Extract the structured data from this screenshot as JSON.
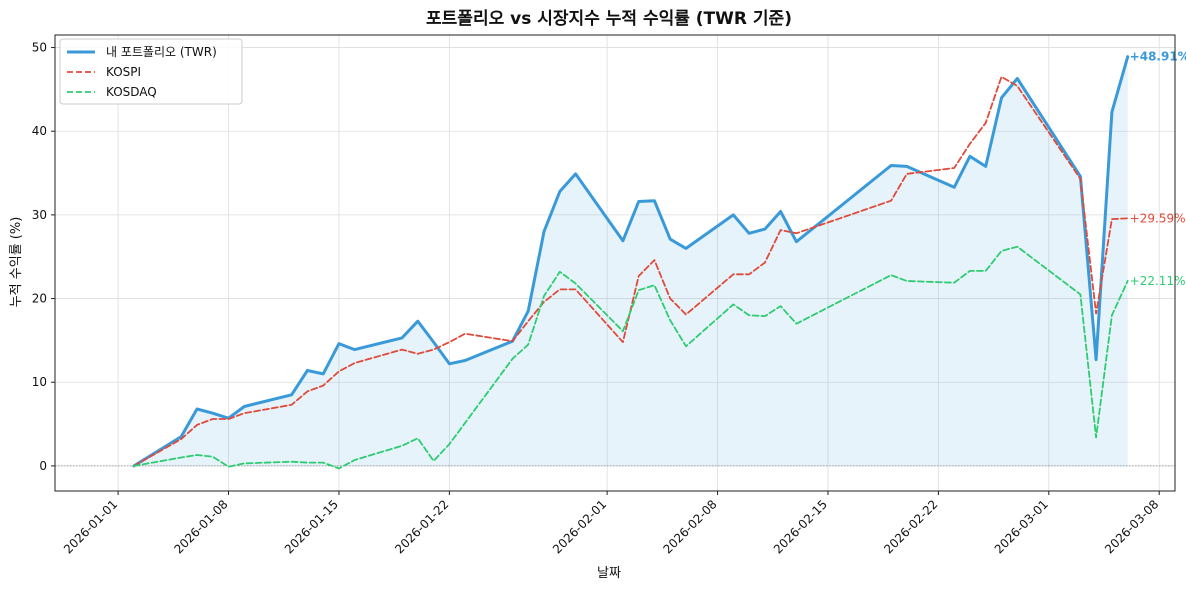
{
  "chart_data": {
    "type": "line",
    "title": "포트폴리오 vs 시장지수 누적 수익률 (TWR 기준)",
    "xlabel": "날짜",
    "ylabel": "누적 수익률 (%)",
    "xlim": [
      "2025-12-28",
      "2026-03-09"
    ],
    "ylim": [
      -3,
      51.5
    ],
    "x_ticks": [
      "2026-01-01",
      "2026-01-08",
      "2026-01-15",
      "2026-01-22",
      "2026-02-01",
      "2026-02-08",
      "2026-02-15",
      "2026-02-22",
      "2026-03-01",
      "2026-03-08"
    ],
    "y_ticks": [
      0,
      10,
      20,
      30,
      40,
      50
    ],
    "grid": true,
    "legend_position": "top-left",
    "baseline": 0,
    "series": [
      {
        "name": "내 포트폴리오 (TWR)",
        "color": "#3a9ad9",
        "style": "solid",
        "fill": true,
        "end_label": "+48.91%",
        "points": [
          [
            "2026-01-02",
            0.0
          ],
          [
            "2026-01-05",
            3.5
          ],
          [
            "2026-01-06",
            6.8
          ],
          [
            "2026-01-07",
            6.3
          ],
          [
            "2026-01-08",
            5.7
          ],
          [
            "2026-01-09",
            7.1
          ],
          [
            "2026-01-12",
            8.5
          ],
          [
            "2026-01-13",
            11.4
          ],
          [
            "2026-01-14",
            11.0
          ],
          [
            "2026-01-15",
            14.6
          ],
          [
            "2026-01-16",
            13.9
          ],
          [
            "2026-01-19",
            15.3
          ],
          [
            "2026-01-20",
            17.3
          ],
          [
            "2026-01-21",
            14.8
          ],
          [
            "2026-01-22",
            12.2
          ],
          [
            "2026-01-23",
            12.6
          ],
          [
            "2026-01-26",
            14.9
          ],
          [
            "2026-01-27",
            18.5
          ],
          [
            "2026-01-28",
            28.0
          ],
          [
            "2026-01-29",
            32.8
          ],
          [
            "2026-01-30",
            34.9
          ],
          [
            "2026-02-02",
            26.9
          ],
          [
            "2026-02-03",
            31.6
          ],
          [
            "2026-02-04",
            31.7
          ],
          [
            "2026-02-05",
            27.1
          ],
          [
            "2026-02-06",
            26.0
          ],
          [
            "2026-02-09",
            30.0
          ],
          [
            "2026-02-10",
            27.8
          ],
          [
            "2026-02-11",
            28.3
          ],
          [
            "2026-02-12",
            30.4
          ],
          [
            "2026-02-13",
            26.8
          ],
          [
            "2026-02-19",
            35.9
          ],
          [
            "2026-02-20",
            35.8
          ],
          [
            "2026-02-23",
            33.3
          ],
          [
            "2026-02-24",
            37.0
          ],
          [
            "2026-02-25",
            35.8
          ],
          [
            "2026-02-26",
            44.0
          ],
          [
            "2026-02-27",
            46.3
          ],
          [
            "2026-03-03",
            34.6
          ],
          [
            "2026-03-04",
            12.7
          ],
          [
            "2026-03-05",
            42.3
          ],
          [
            "2026-03-06",
            48.91
          ]
        ]
      },
      {
        "name": "KOSPI",
        "color": "#e04a3a",
        "style": "dashed",
        "fill": false,
        "end_label": "+29.59%",
        "points": [
          [
            "2026-01-02",
            0.0
          ],
          [
            "2026-01-05",
            3.2
          ],
          [
            "2026-01-06",
            4.9
          ],
          [
            "2026-01-07",
            5.6
          ],
          [
            "2026-01-08",
            5.6
          ],
          [
            "2026-01-09",
            6.3
          ],
          [
            "2026-01-12",
            7.3
          ],
          [
            "2026-01-13",
            8.9
          ],
          [
            "2026-01-14",
            9.6
          ],
          [
            "2026-01-15",
            11.3
          ],
          [
            "2026-01-16",
            12.3
          ],
          [
            "2026-01-19",
            13.9
          ],
          [
            "2026-01-20",
            13.4
          ],
          [
            "2026-01-21",
            13.9
          ],
          [
            "2026-01-22",
            14.8
          ],
          [
            "2026-01-23",
            15.8
          ],
          [
            "2026-01-26",
            14.9
          ],
          [
            "2026-01-27",
            17.3
          ],
          [
            "2026-01-28",
            19.6
          ],
          [
            "2026-01-29",
            21.1
          ],
          [
            "2026-01-30",
            21.1
          ],
          [
            "2026-02-02",
            14.8
          ],
          [
            "2026-02-03",
            22.7
          ],
          [
            "2026-02-04",
            24.6
          ],
          [
            "2026-02-05",
            20.0
          ],
          [
            "2026-02-06",
            18.1
          ],
          [
            "2026-02-09",
            22.9
          ],
          [
            "2026-02-10",
            22.9
          ],
          [
            "2026-02-11",
            24.3
          ],
          [
            "2026-02-12",
            28.2
          ],
          [
            "2026-02-13",
            27.8
          ],
          [
            "2026-02-19",
            31.7
          ],
          [
            "2026-02-20",
            34.9
          ],
          [
            "2026-02-23",
            35.6
          ],
          [
            "2026-02-24",
            38.5
          ],
          [
            "2026-02-25",
            41.0
          ],
          [
            "2026-02-26",
            46.5
          ],
          [
            "2026-02-27",
            45.4
          ],
          [
            "2026-03-03",
            34.3
          ],
          [
            "2026-03-04",
            18.2
          ],
          [
            "2026-03-05",
            29.5
          ],
          [
            "2026-03-06",
            29.59
          ]
        ]
      },
      {
        "name": "KOSDAQ",
        "color": "#2ecc71",
        "style": "dashed",
        "fill": false,
        "end_label": "+22.11%",
        "points": [
          [
            "2026-01-02",
            0.0
          ],
          [
            "2026-01-05",
            1.0
          ],
          [
            "2026-01-06",
            1.3
          ],
          [
            "2026-01-07",
            1.1
          ],
          [
            "2026-01-08",
            -0.1
          ],
          [
            "2026-01-09",
            0.3
          ],
          [
            "2026-01-12",
            0.5
          ],
          [
            "2026-01-13",
            0.4
          ],
          [
            "2026-01-14",
            0.4
          ],
          [
            "2026-01-15",
            -0.3
          ],
          [
            "2026-01-16",
            0.7
          ],
          [
            "2026-01-19",
            2.4
          ],
          [
            "2026-01-20",
            3.3
          ],
          [
            "2026-01-21",
            0.6
          ],
          [
            "2026-01-22",
            2.6
          ],
          [
            "2026-01-26",
            12.8
          ],
          [
            "2026-01-27",
            14.5
          ],
          [
            "2026-01-28",
            20.3
          ],
          [
            "2026-01-29",
            23.2
          ],
          [
            "2026-01-30",
            21.8
          ],
          [
            "2026-02-02",
            16.1
          ],
          [
            "2026-02-03",
            21.0
          ],
          [
            "2026-02-04",
            21.6
          ],
          [
            "2026-02-05",
            17.4
          ],
          [
            "2026-02-06",
            14.3
          ],
          [
            "2026-02-09",
            19.3
          ],
          [
            "2026-02-10",
            18.0
          ],
          [
            "2026-02-11",
            17.9
          ],
          [
            "2026-02-12",
            19.1
          ],
          [
            "2026-02-13",
            17.0
          ],
          [
            "2026-02-19",
            22.8
          ],
          [
            "2026-02-20",
            22.1
          ],
          [
            "2026-02-23",
            21.9
          ],
          [
            "2026-02-24",
            23.3
          ],
          [
            "2026-02-25",
            23.3
          ],
          [
            "2026-02-26",
            25.7
          ],
          [
            "2026-02-27",
            26.2
          ],
          [
            "2026-03-03",
            20.5
          ],
          [
            "2026-03-04",
            3.4
          ],
          [
            "2026-03-05",
            18.0
          ],
          [
            "2026-03-06",
            22.11
          ]
        ]
      }
    ]
  }
}
